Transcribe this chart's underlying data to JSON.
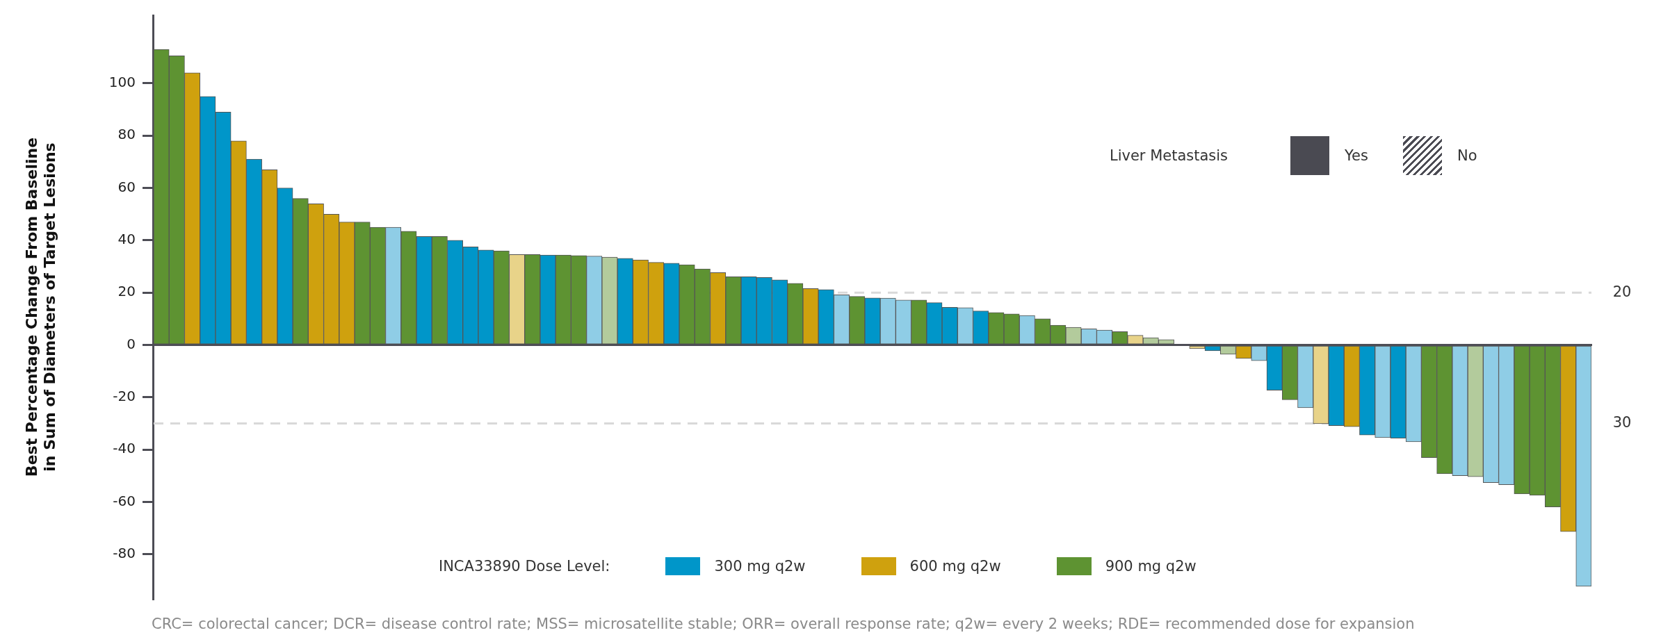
{
  "chart_data": {
    "type": "bar",
    "ylabel": "Best Percentage Change From Baseline in Sum of Diameters of Target Lesions",
    "categories": [
      null,
      null,
      null,
      null,
      null,
      null,
      null,
      null,
      null,
      null,
      null,
      null,
      null,
      null,
      null,
      null,
      null,
      null,
      null,
      null,
      null,
      null,
      null,
      null,
      null,
      null,
      null,
      null,
      null,
      null,
      null,
      null,
      null,
      null,
      null,
      null,
      null,
      null,
      null,
      null,
      null,
      null,
      null,
      null,
      null,
      null,
      null,
      null,
      null,
      null,
      null,
      null,
      null,
      null,
      null,
      null,
      null,
      null,
      null,
      null,
      null,
      null,
      null,
      null,
      null,
      null,
      null,
      null,
      null,
      null,
      null,
      null,
      null,
      null,
      null,
      null,
      null,
      null,
      null,
      null,
      null,
      null,
      null,
      null,
      null,
      null,
      null,
      null,
      null,
      null,
      null,
      null,
      null
    ],
    "stacked": true,
    "series": [
      {
        "name": "300 mg q2w",
        "color": "#0096c9",
        "values": [
          null,
          null,
          null,
          95,
          89,
          null,
          71,
          null,
          60,
          null,
          null,
          null,
          null,
          null,
          null,
          45,
          null,
          41.5,
          null,
          40,
          37.5,
          36.3,
          null,
          null,
          null,
          34.4,
          null,
          null,
          34,
          null,
          33.1,
          null,
          null,
          31.3,
          null,
          null,
          null,
          null,
          26.1,
          25.8,
          24.9,
          null,
          null,
          21.2,
          19.2,
          null,
          18,
          17.9,
          17.2,
          null,
          16.2,
          14.4,
          14.3,
          13,
          null,
          null,
          11.3,
          null,
          null,
          null,
          6.2,
          5.7,
          null,
          null,
          null,
          null,
          null,
          null,
          -2.2,
          null,
          null,
          -6,
          -17.3,
          null,
          -24,
          null,
          -30.8,
          null,
          -34.4,
          -35.4,
          -35.6,
          -37,
          null,
          null,
          -49.9,
          null,
          -52.6,
          -53.4,
          null,
          null,
          null,
          null,
          -92.2
        ],
        "colors": [
          null,
          null,
          null,
          "#0096c9",
          "#0096c9",
          null,
          "#0096c9",
          null,
          "#0096c9",
          null,
          null,
          null,
          null,
          null,
          null,
          "#8fcde6",
          null,
          "#0096c9",
          null,
          "#0096c9",
          "#0096c9",
          "#0096c9",
          null,
          null,
          null,
          "#0096c9",
          null,
          null,
          "#8fcde6",
          null,
          "#0096c9",
          null,
          null,
          "#0096c9",
          null,
          null,
          null,
          null,
          "#0096c9",
          "#0096c9",
          "#0096c9",
          null,
          null,
          "#0096c9",
          "#8fcde6",
          null,
          "#0096c9",
          "#8fcde6",
          "#8fcde6",
          null,
          "#0096c9",
          "#0096c9",
          "#8fcde6",
          "#0096c9",
          null,
          null,
          "#8fcde6",
          null,
          null,
          null,
          "#8fcde6",
          "#8fcde6",
          null,
          null,
          null,
          null,
          null,
          null,
          "#0096c9",
          null,
          null,
          "#8fcde6",
          "#0096c9",
          null,
          "#8fcde6",
          null,
          "#0096c9",
          null,
          "#0096c9",
          "#8fcde6",
          "#0096c9",
          "#8fcde6",
          null,
          null,
          "#8fcde6",
          null,
          "#8fcde6",
          "#8fcde6",
          null,
          null,
          null,
          null,
          "#8fcde6"
        ]
      },
      {
        "name": "600 mg q2w",
        "color": "#cfa10e",
        "values": [
          null,
          null,
          104,
          null,
          null,
          78,
          null,
          67,
          null,
          null,
          54,
          50,
          47,
          null,
          null,
          null,
          null,
          null,
          null,
          null,
          null,
          null,
          null,
          34.6,
          null,
          null,
          null,
          null,
          null,
          null,
          null,
          32.5,
          31.6,
          null,
          null,
          null,
          27.7,
          null,
          null,
          null,
          null,
          null,
          21.6,
          null,
          null,
          null,
          null,
          null,
          null,
          null,
          null,
          null,
          null,
          null,
          null,
          null,
          null,
          null,
          null,
          null,
          null,
          null,
          null,
          3.7,
          null,
          null,
          null,
          -1.4,
          null,
          null,
          -5.1,
          null,
          null,
          null,
          null,
          -30.1,
          null,
          -31.2,
          null,
          null,
          null,
          null,
          null,
          null,
          null,
          null,
          null,
          null,
          null,
          null,
          null,
          -71.3,
          null
        ],
        "colors": [
          null,
          null,
          "#cfa10e",
          null,
          null,
          "#cfa10e",
          null,
          "#cfa10e",
          null,
          null,
          "#cfa10e",
          "#cfa10e",
          "#cfa10e",
          null,
          null,
          null,
          null,
          null,
          null,
          null,
          null,
          null,
          null,
          "#e8d389",
          null,
          null,
          null,
          null,
          null,
          null,
          null,
          "#cfa10e",
          "#cfa10e",
          null,
          null,
          null,
          "#cfa10e",
          null,
          null,
          null,
          null,
          null,
          "#cfa10e",
          null,
          null,
          null,
          null,
          null,
          null,
          null,
          null,
          null,
          null,
          null,
          null,
          null,
          null,
          null,
          null,
          null,
          null,
          null,
          null,
          "#e8d389",
          null,
          null,
          null,
          "#e8d389",
          null,
          null,
          "#cfa10e",
          null,
          null,
          null,
          null,
          "#e8d389",
          null,
          "#cfa10e",
          null,
          null,
          null,
          null,
          null,
          null,
          null,
          null,
          null,
          null,
          null,
          null,
          null,
          "#cfa10e",
          null
        ]
      },
      {
        "name": "900 mg q2w",
        "color": "#5e9332",
        "values": [
          113,
          110.5,
          null,
          null,
          null,
          null,
          null,
          null,
          null,
          56,
          null,
          null,
          null,
          47,
          45,
          null,
          43.5,
          null,
          41.5,
          null,
          null,
          null,
          36,
          null,
          34.6,
          null,
          34.4,
          34.2,
          null,
          33.6,
          null,
          null,
          null,
          null,
          30.7,
          29.1,
          null,
          26.1,
          null,
          null,
          null,
          23.6,
          null,
          null,
          null,
          18.6,
          null,
          null,
          null,
          17.2,
          null,
          null,
          null,
          null,
          12.4,
          11.9,
          null,
          10,
          7.6,
          6.8,
          null,
          null,
          5.1,
          null,
          2.8,
          2.1,
          null,
          null,
          null,
          -3.5,
          null,
          null,
          null,
          -20.9,
          null,
          null,
          null,
          null,
          null,
          null,
          null,
          null,
          -43,
          -49.2,
          null,
          -50.3,
          null,
          null,
          -56.9,
          -57.4,
          -61.9,
          null,
          null
        ],
        "colors": [
          "#5e9332",
          "#5e9332",
          null,
          null,
          null,
          null,
          null,
          null,
          null,
          "#5e9332",
          null,
          null,
          null,
          "#5e9332",
          "#5e9332",
          null,
          "#5e9332",
          null,
          "#5e9332",
          null,
          null,
          null,
          "#5e9332",
          null,
          "#5e9332",
          null,
          "#5e9332",
          "#5e9332",
          null,
          "#b3cb9c",
          null,
          null,
          null,
          null,
          "#5e9332",
          "#5e9332",
          null,
          "#5e9332",
          null,
          null,
          null,
          "#5e9332",
          null,
          null,
          null,
          "#5e9332",
          null,
          null,
          null,
          "#5e9332",
          null,
          null,
          null,
          null,
          "#5e9332",
          "#5e9332",
          null,
          "#5e9332",
          "#5e9332",
          "#b3cb9c",
          null,
          null,
          "#5e9332",
          null,
          "#b3cb9c",
          "#b3cb9c",
          null,
          null,
          null,
          "#b3cb9c",
          null,
          null,
          null,
          "#5e9332",
          null,
          null,
          null,
          null,
          null,
          null,
          null,
          null,
          "#5e9332",
          "#5e9332",
          null,
          "#b3cb9c",
          null,
          null,
          "#5e9332",
          "#5e9332",
          "#5e9332",
          null,
          null
        ]
      }
    ],
    "ylim": [
      -97,
      126
    ],
    "yticks": [
      -80,
      -60,
      -40,
      -20,
      0,
      20,
      40,
      60,
      80,
      100
    ],
    "ref_lines": [
      {
        "axis": "y",
        "value": 20,
        "label": "20",
        "color": "#d9d9d9",
        "line_style": "dashed"
      },
      {
        "axis": "y",
        "value": -30,
        "color": "#d9d9d9",
        "line_style": "dashed"
      }
    ],
    "legend": "bottom",
    "legend_title": "INCA33890 Dose Level:",
    "annotations": [
      "Liver Metastasis",
      "Yes",
      "No",
      "30",
      "CRC= colorectal cancer; DCR= disease control rate; MSS= microsatellite stable; ORR= overall response rate; q2w= every 2 weeks; RDE= recommended dose for expansion"
    ]
  }
}
